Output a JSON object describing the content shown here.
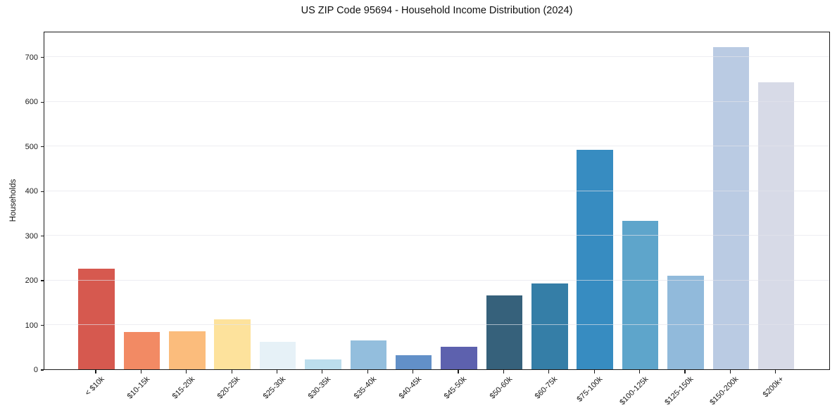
{
  "page": {
    "background": "#ffffff"
  },
  "chart_data": {
    "type": "bar",
    "title": "US ZIP Code 95694 - Household Income Distribution (2024)",
    "xlabel": "",
    "ylabel": "Households",
    "categories": [
      "< $10k",
      "$10-15k",
      "$15-20k",
      "$20-25k",
      "$25-30k",
      "$30-35k",
      "$35-40k",
      "$40-45k",
      "$45-50k",
      "$50-60k",
      "$60-75k",
      "$75-100k",
      "$100-125k",
      "$125-150k",
      "$150-200k",
      "$200k+"
    ],
    "values": [
      225,
      83,
      85,
      112,
      62,
      22,
      65,
      32,
      51,
      166,
      192,
      492,
      333,
      209,
      721,
      643
    ],
    "bar_colors": [
      "#d6594f",
      "#f28a64",
      "#fbbc7c",
      "#fde29c",
      "#e6f1f7",
      "#bcdeed",
      "#93bedd",
      "#6290c8",
      "#5d61ae",
      "#36617b",
      "#357ea7",
      "#378cc1",
      "#5ea5cb",
      "#91badb",
      "#bacbe3",
      "#d7dae7"
    ],
    "yticks": [
      0,
      100,
      200,
      300,
      400,
      500,
      600,
      700
    ],
    "ylim": [
      0,
      758
    ],
    "grid": true,
    "gridline_color": "#e3e3eb",
    "axis_color": "#1a1a1a",
    "text_color": "#1a1a1a",
    "legend": "none",
    "x_tick_rotation_deg": 45
  }
}
